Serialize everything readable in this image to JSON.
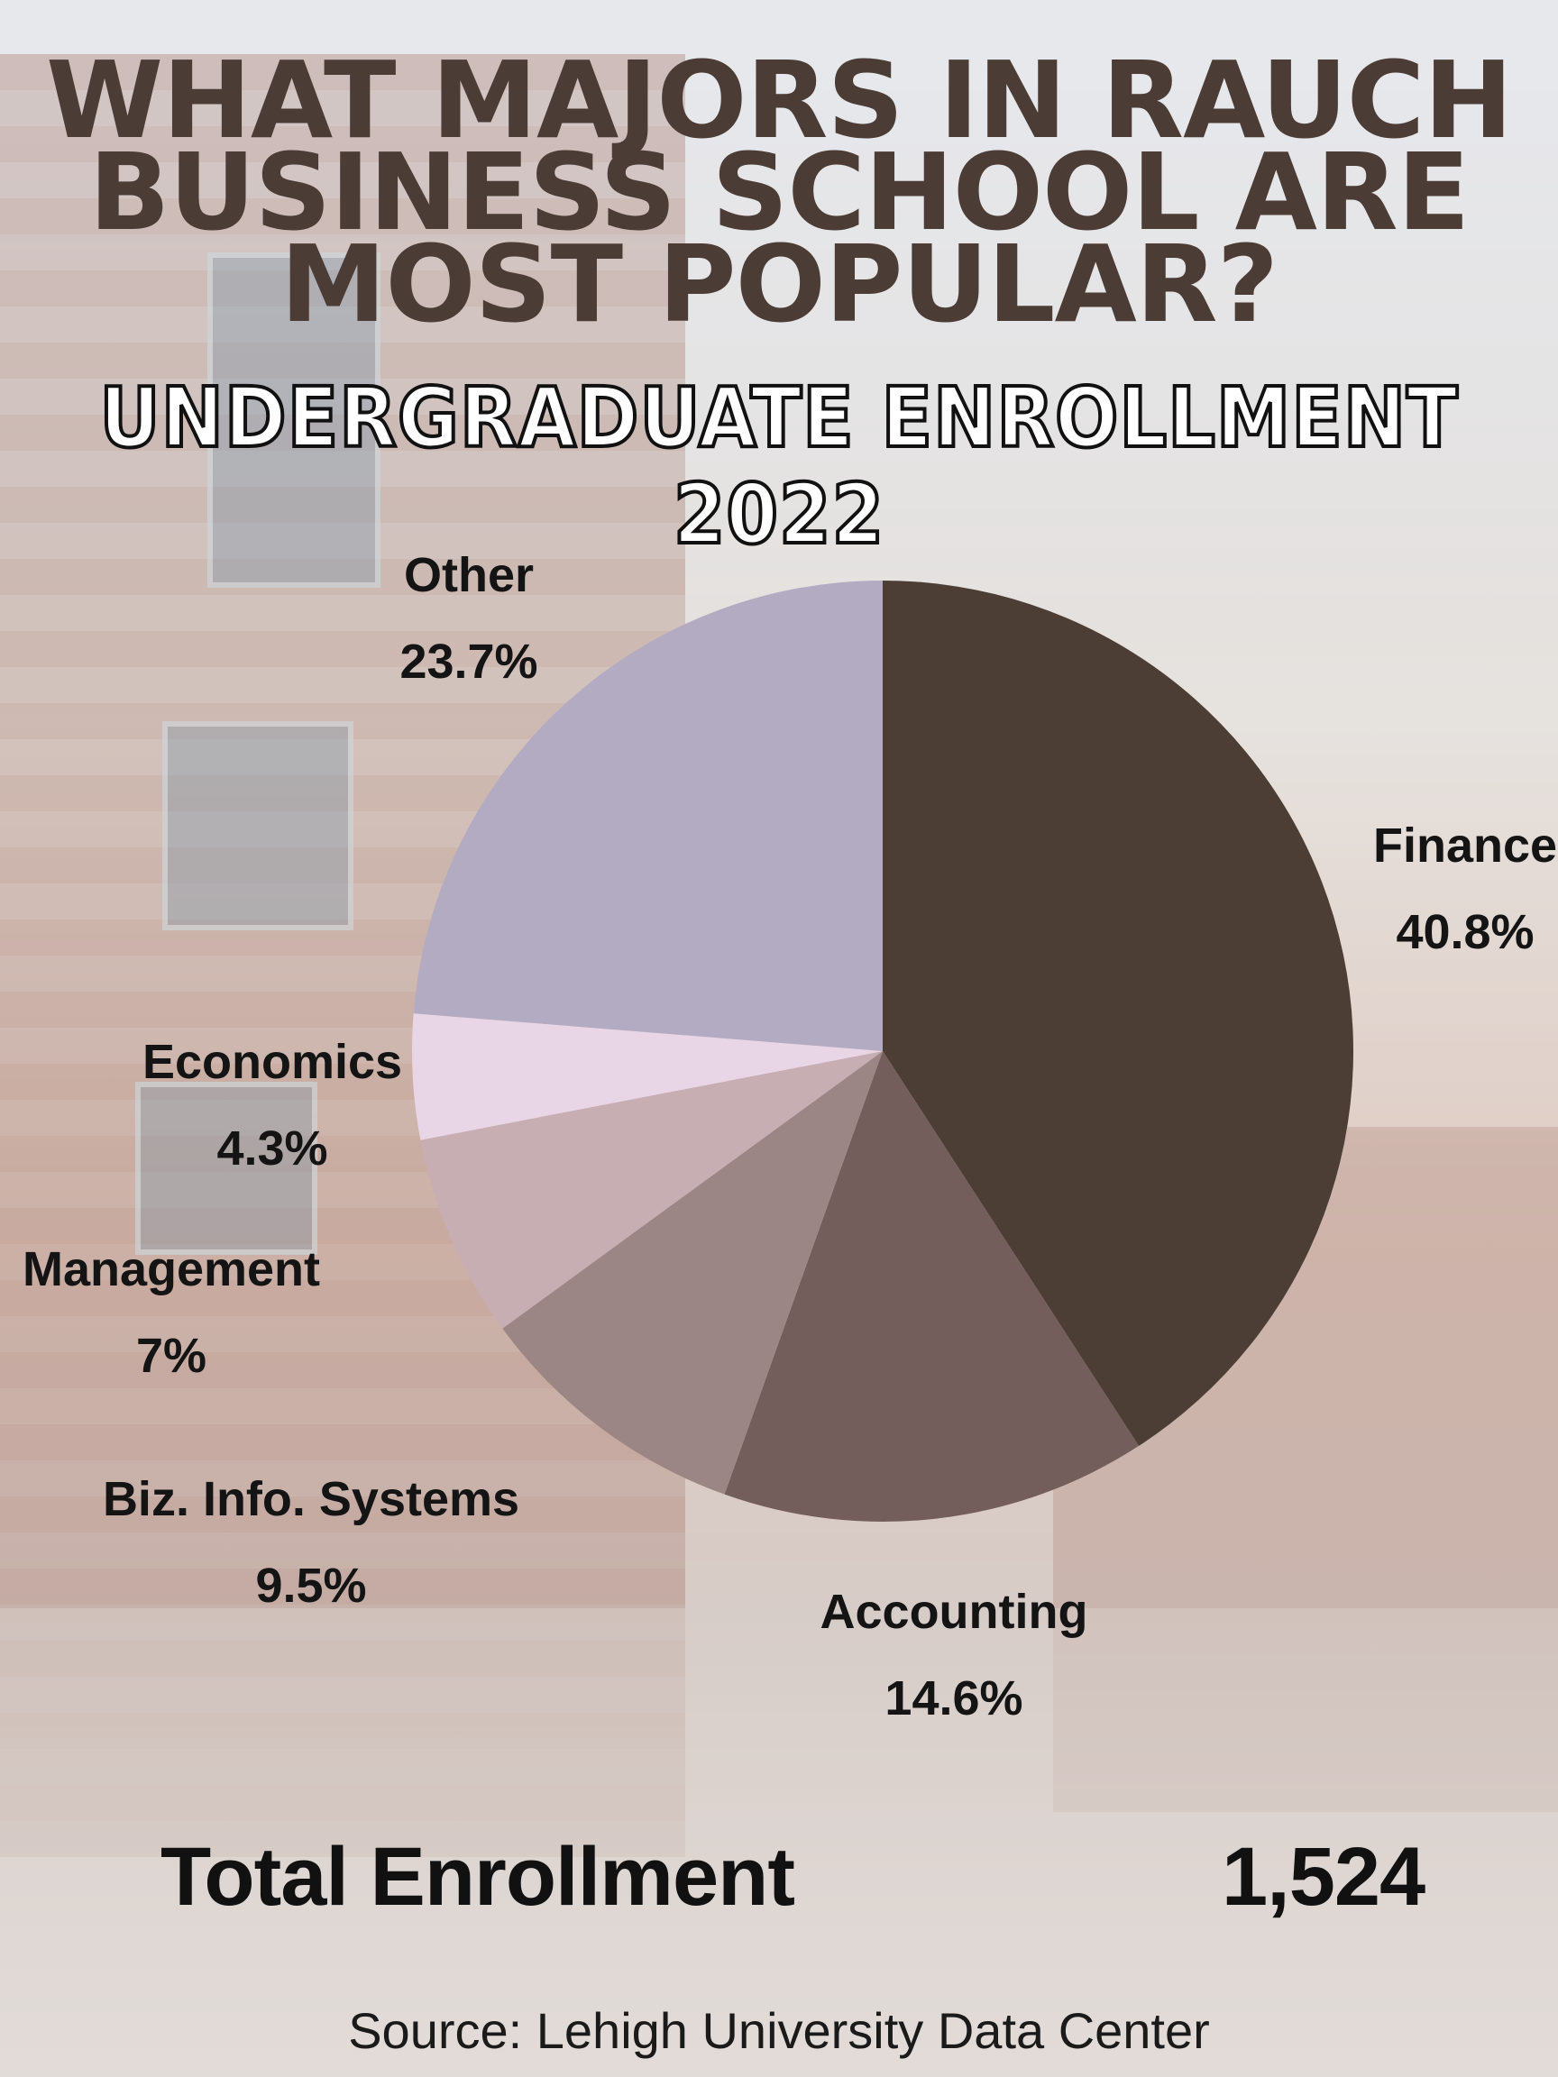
{
  "header": {
    "title_lines": [
      "WHAT MAJORS IN RAUCH",
      "BUSINESS SCHOOL ARE",
      "MOST POPULAR?"
    ],
    "subtitle": "UNDERGRADUATE ENROLLMENT 2022"
  },
  "chart_data": {
    "type": "pie",
    "title": "WHAT MAJORS IN RAUCH BUSINESS SCHOOL ARE MOST POPULAR?",
    "subtitle": "UNDERGRADUATE ENROLLMENT 2022",
    "categories": [
      "Finance",
      "Accounting",
      "Biz. Info. Systems",
      "Management",
      "Economics",
      "Other"
    ],
    "values": [
      40.8,
      14.6,
      9.5,
      7.0,
      4.3,
      23.7
    ],
    "value_labels": [
      "40.8%",
      "14.6%",
      "9.5%",
      "7%",
      "4.3%",
      "23.7%"
    ],
    "unit": "%",
    "colors": [
      "#4d3e35",
      "#735e5c",
      "#9c8585",
      "#c6aeb3",
      "#e8d6e6",
      "#b3abc2"
    ],
    "start_angle_deg": 0,
    "direction": "clockwise"
  },
  "footer": {
    "total_label": "Total Enrollment",
    "total_value": "1,524",
    "source": "Source: Lehigh University Data Center"
  }
}
